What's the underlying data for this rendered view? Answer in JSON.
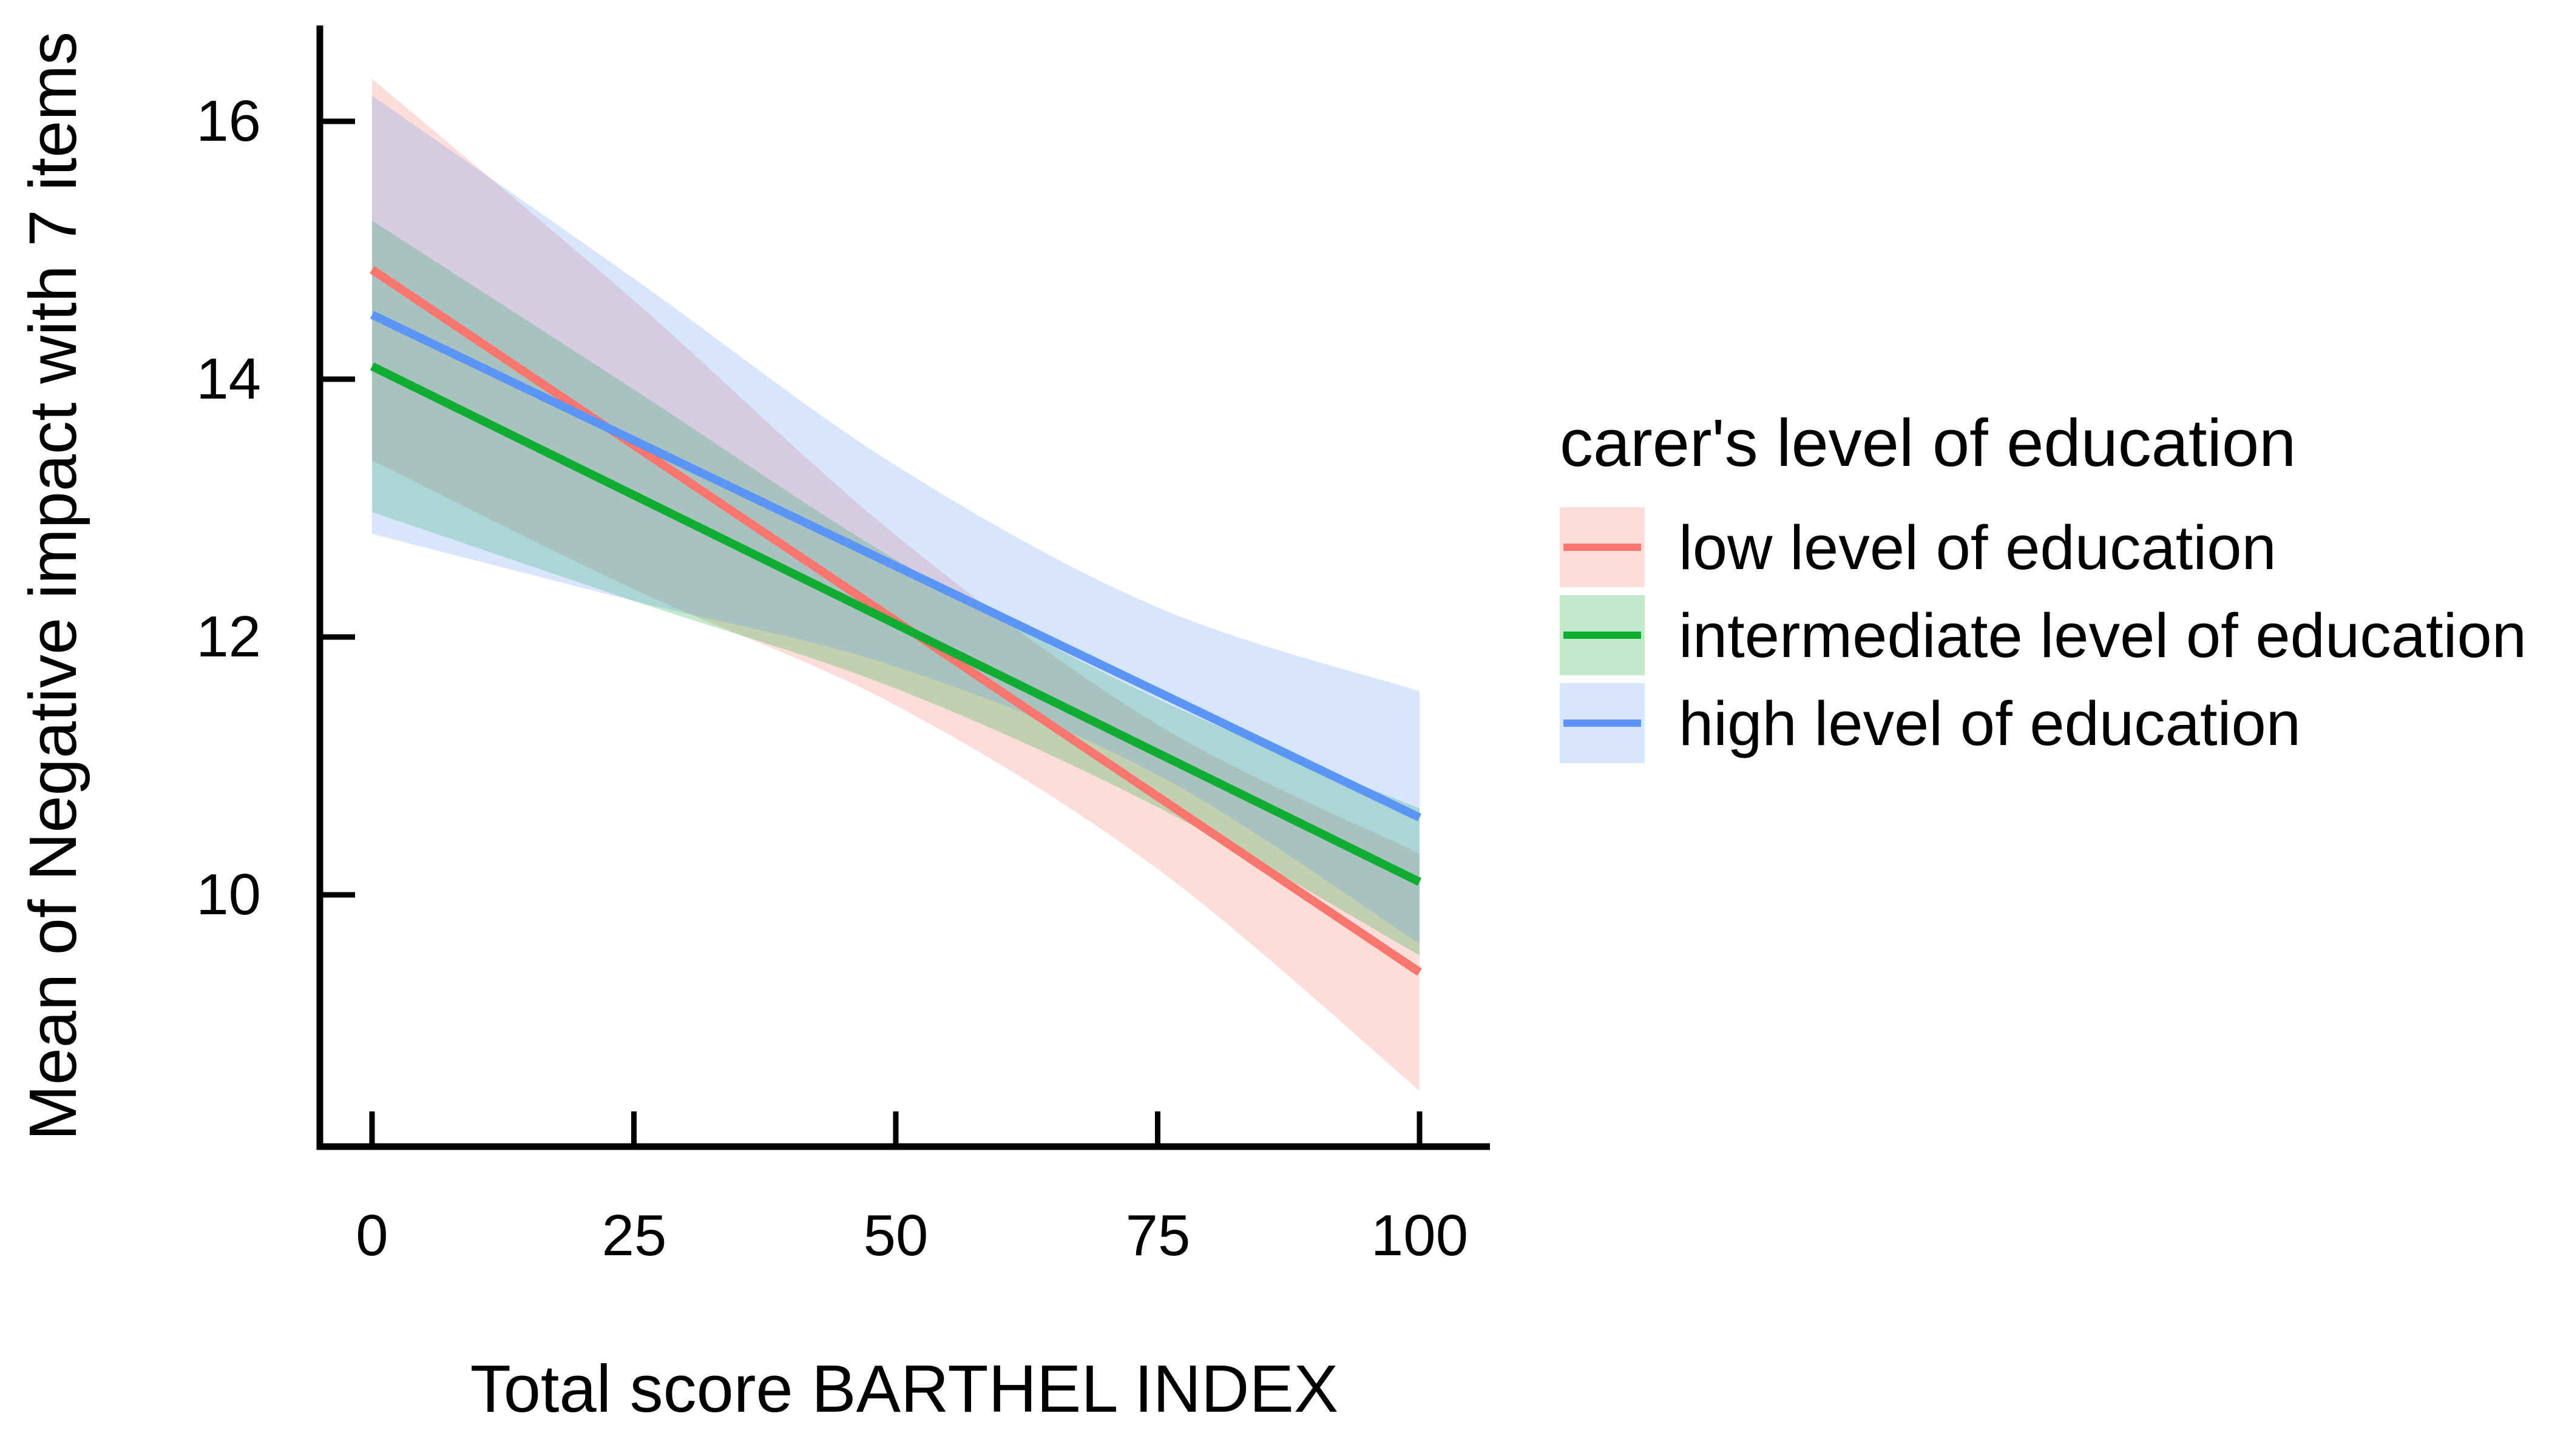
{
  "page": {
    "background": "#ffffff",
    "text_color": "#000000"
  },
  "chart_data": {
    "type": "line",
    "title": "",
    "grid": "off",
    "x_axis": {
      "label": "Total score BARTHEL INDEX",
      "tick_labels": [
        "0",
        "25",
        "50",
        "75",
        "100"
      ],
      "tick_values": [
        0,
        25,
        50,
        75,
        100
      ],
      "range": [
        0,
        100
      ]
    },
    "y_axis": {
      "label": "Mean of Negative impact with 7 items",
      "tick_labels": [
        "16",
        "14",
        "12",
        "10"
      ],
      "tick_values": [
        16,
        14,
        12,
        10
      ],
      "range": [
        8.0,
        16.75
      ]
    },
    "legend": {
      "title": "carer's level of education",
      "position": "right"
    },
    "series": [
      {
        "name": "low level of education",
        "color": "#F8766D",
        "fill_alpha": 0.25,
        "line": {
          "x": [
            0,
            100
          ],
          "y": [
            14.85,
            9.4
          ]
        },
        "ribbon": {
          "x": [
            0,
            25,
            50,
            75,
            100
          ],
          "upper": [
            16.33,
            14.61,
            12.79,
            11.32,
            10.32
          ],
          "lower": [
            13.37,
            12.37,
            11.47,
            10.2,
            8.48
          ]
        }
      },
      {
        "name": "intermediate level of education",
        "color": "#0FAD31",
        "fill_alpha": 0.25,
        "line": {
          "x": [
            0,
            100
          ],
          "y": [
            14.1,
            10.1
          ]
        },
        "ribbon": {
          "x": [
            0,
            25,
            50,
            75,
            100
          ],
          "upper": [
            15.23,
            13.92,
            12.6,
            11.52,
            10.67
          ],
          "lower": [
            12.97,
            12.28,
            11.6,
            10.68,
            9.53
          ]
        }
      },
      {
        "name": "high level of education",
        "color": "#5B96F7",
        "fill_alpha": 0.24,
        "line": {
          "x": [
            0,
            100
          ],
          "y": [
            14.5,
            10.6
          ]
        },
        "ribbon": {
          "x": [
            0,
            25,
            50,
            75,
            100
          ],
          "upper": [
            16.2,
            14.78,
            13.33,
            12.23,
            11.58
          ],
          "lower": [
            12.8,
            12.28,
            11.77,
            10.93,
            9.62
          ]
        }
      }
    ]
  }
}
